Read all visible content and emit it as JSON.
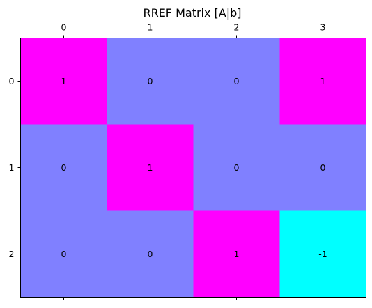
{
  "chart_data": {
    "type": "heatmap",
    "title": "RREF Matrix [A|b]",
    "xlabel": "",
    "ylabel": "",
    "x_tick_labels": [
      "0",
      "1",
      "2",
      "3"
    ],
    "y_tick_labels": [
      "0",
      "1",
      "2"
    ],
    "values": [
      [
        1,
        0,
        0,
        1
      ],
      [
        0,
        1,
        0,
        0
      ],
      [
        0,
        0,
        1,
        -1
      ]
    ],
    "cell_labels": [
      [
        "1",
        "0",
        "0",
        "1"
      ],
      [
        "0",
        "1",
        "0",
        "0"
      ],
      [
        "0",
        "0",
        "1",
        "-1"
      ]
    ],
    "colormap": "cool",
    "value_colors": {
      "-1": "#00ffff",
      "0": "#8080ff",
      "1": "#ff00ff"
    },
    "x_ticks_position": "top-and-bottom",
    "grid": false
  }
}
